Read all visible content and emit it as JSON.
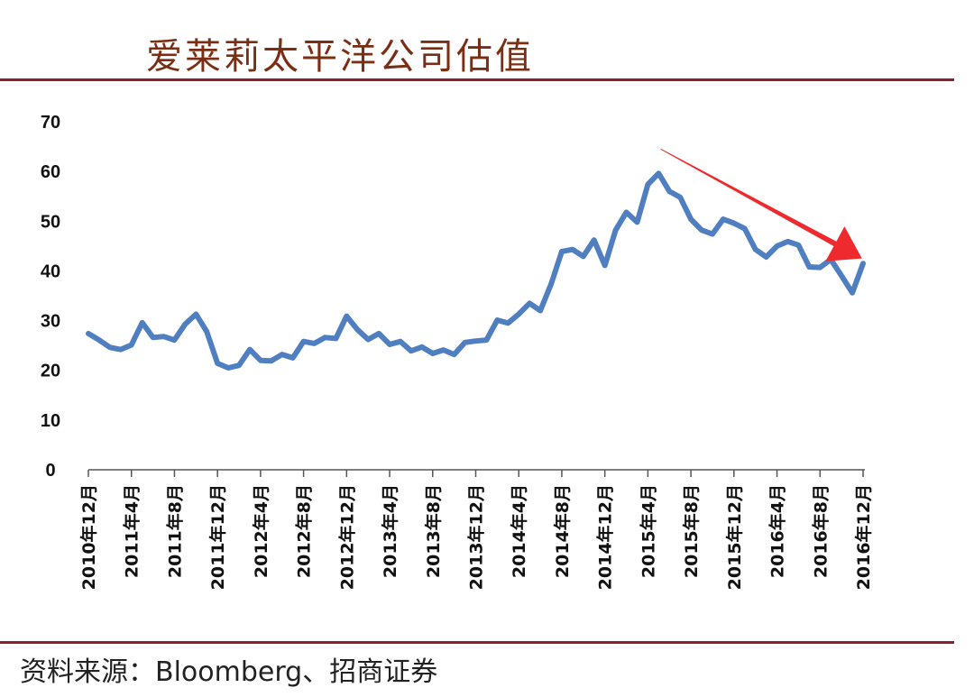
{
  "header": {
    "title": "爱莱莉太平洋公司估值"
  },
  "footer": {
    "source": "资料来源：Bloomberg、招商证券"
  },
  "colors": {
    "line": "#4f7fc0",
    "arrow": "#ee2a2f",
    "rule": "#8b1f2b",
    "title": "#7a2f14"
  },
  "chart_data": {
    "type": "line",
    "title": "爱莱莉太平洋公司估值",
    "xlabel": "",
    "ylabel": "",
    "ylim": [
      0,
      70
    ],
    "yticks": [
      0,
      10,
      20,
      30,
      40,
      50,
      60,
      70
    ],
    "grid": false,
    "legend": "none",
    "x_tick_labels": [
      "2010年12月",
      "2011年4月",
      "2011年8月",
      "2011年12月",
      "2012年4月",
      "2012年8月",
      "2012年12月",
      "2013年4月",
      "2013年8月",
      "2013年12月",
      "2014年4月",
      "2014年8月",
      "2014年12月",
      "2015年4月",
      "2015年8月",
      "2015年12月",
      "2016年4月",
      "2016年8月",
      "2016年12月"
    ],
    "series": [
      {
        "values": [
          27.4,
          26.1,
          24.6,
          24.2,
          25.1,
          29.6,
          26.6,
          26.8,
          26.1,
          29.3,
          31.3,
          27.8,
          21.4,
          20.5,
          21.0,
          24.2,
          22.0,
          21.9,
          23.2,
          22.5,
          25.8,
          25.4,
          26.6,
          26.4,
          30.9,
          28.2,
          26.2,
          27.4,
          25.2,
          25.8,
          23.9,
          24.7,
          23.4,
          24.1,
          23.2,
          25.6,
          25.9,
          26.1,
          30.1,
          29.5,
          31.3,
          33.5,
          32.0,
          37.3,
          43.9,
          44.3,
          42.9,
          46.2,
          41.1,
          48.2,
          51.8,
          49.8,
          57.4,
          59.6,
          56.0,
          54.8,
          50.4,
          48.2,
          47.4,
          50.4,
          49.6,
          48.5,
          44.3,
          42.8,
          45.0,
          45.9,
          45.2,
          40.8,
          40.7,
          42.3,
          39.0,
          35.6,
          41.5
        ]
      }
    ],
    "annotations": [
      {
        "type": "arrow",
        "from": {
          "x_index": 53.2,
          "y": 64.5
        },
        "to": {
          "x_index": 71.9,
          "y": 42.5
        }
      }
    ]
  }
}
